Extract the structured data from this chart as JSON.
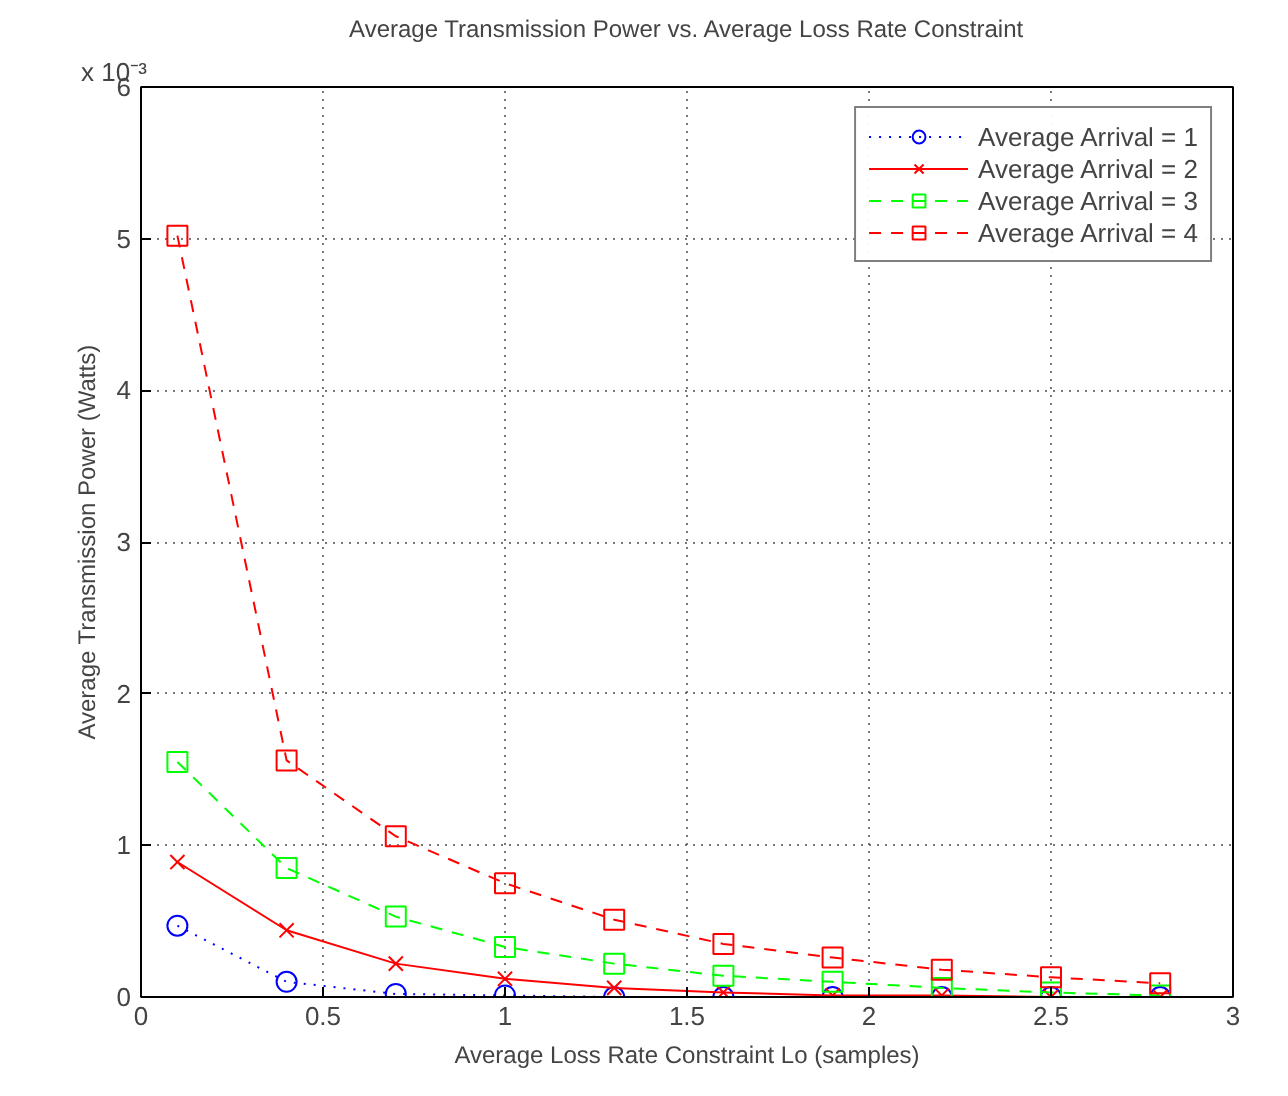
{
  "chart_data": {
    "type": "line",
    "title": "Average Transmission Power vs. Average Loss Rate Constraint",
    "xlabel": "Average Loss Rate Constraint Lo (samples)",
    "ylabel": "Average Transmission Power (Watts)",
    "annotations": [
      "x 10⁻³"
    ],
    "x": [
      0.1,
      0.4,
      0.7,
      1.0,
      1.3,
      1.6,
      1.9,
      2.2,
      2.5,
      2.8
    ],
    "series": [
      {
        "name": "Average Arrival = 1",
        "color": "#0000ff",
        "marker": "circle",
        "line_style": "dotted",
        "values": [
          0.47,
          0.1,
          0.02,
          0.01,
          0,
          0,
          0,
          0,
          0,
          0
        ]
      },
      {
        "name": "Average Arrival = 2",
        "color": "#ff0000",
        "marker": "cross",
        "line_style": "solid",
        "values": [
          0.89,
          0.44,
          0.22,
          0.12,
          0.06,
          0.03,
          0.01,
          0.01,
          0,
          0
        ]
      },
      {
        "name": "Average Arrival = 3",
        "color": "#00ff00",
        "marker": "square",
        "line_style": "dashed",
        "values": [
          1.55,
          0.85,
          0.53,
          0.33,
          0.22,
          0.14,
          0.1,
          0.06,
          0.03,
          0.01
        ]
      },
      {
        "name": "Average Arrival = 4",
        "color": "#ff0000",
        "marker": "square",
        "line_style": "dashed",
        "values": [
          5.02,
          1.56,
          1.06,
          0.75,
          0.51,
          0.35,
          0.26,
          0.18,
          0.13,
          0.09
        ]
      }
    ],
    "xlim": [
      0,
      3
    ],
    "ylim": [
      0,
      6
    ],
    "xticks": [
      0,
      0.5,
      1,
      1.5,
      2,
      2.5,
      3
    ],
    "yticks": [
      0,
      1,
      2,
      3,
      4,
      5,
      6
    ],
    "grid": true,
    "legend": "top right"
  }
}
